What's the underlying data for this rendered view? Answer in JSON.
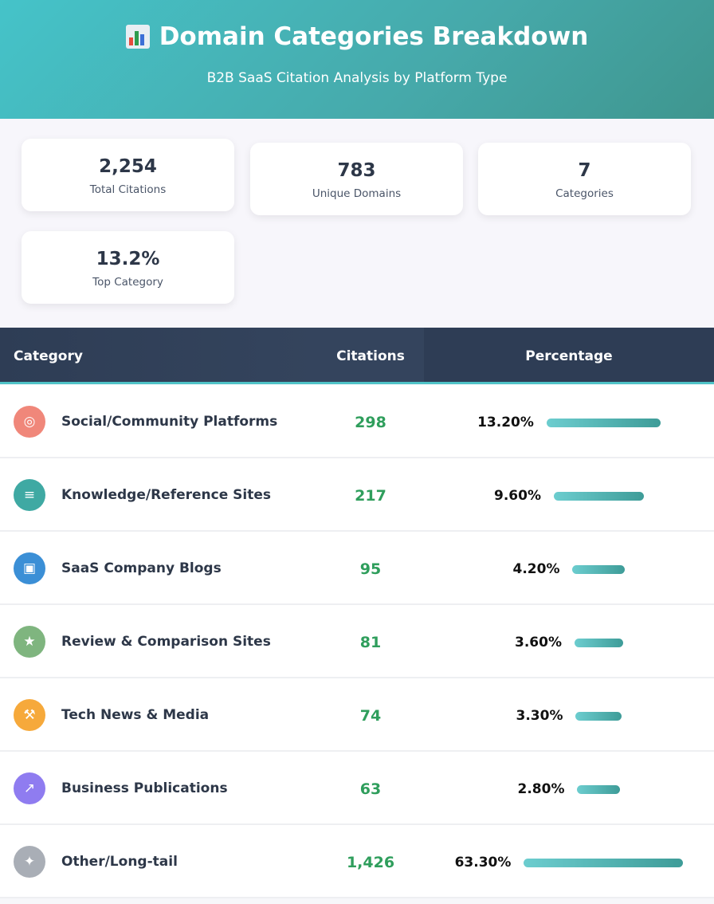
{
  "header": {
    "title": "Domain Categories Breakdown",
    "subtitle": "B2B SaaS Citation Analysis by Platform Type",
    "icon": "bar-chart-icon"
  },
  "stats": [
    {
      "value": "2,254",
      "label": "Total Citations"
    },
    {
      "value": "783",
      "label": "Unique Domains"
    },
    {
      "value": "7",
      "label": "Categories"
    },
    {
      "value": "13.2%",
      "label": "Top Category"
    }
  ],
  "table": {
    "columns": [
      "Category",
      "Citations",
      "Percentage"
    ]
  },
  "colors": {
    "header_gradient_start": "#45c3c9",
    "header_gradient_end": "#3f968f",
    "table_header": "#2e3d55",
    "citation_green": "#2f9e5c",
    "bar_start": "#6ccdcf",
    "bar_end": "#3e9c98"
  },
  "chart_data": {
    "type": "table",
    "categories": [
      "Social/Community Platforms",
      "Knowledge/Reference Sites",
      "SaaS Company Blogs",
      "Review & Comparison Sites",
      "Tech News & Media",
      "Business Publications",
      "Other/Long-tail"
    ],
    "citations": [
      "298",
      "217",
      "95",
      "81",
      "74",
      "63",
      "1,426"
    ],
    "percent_labels": [
      "13.20%",
      "9.60%",
      "4.20%",
      "3.60%",
      "3.30%",
      "2.80%",
      "63.30%"
    ],
    "percent_values": [
      13.2,
      9.6,
      4.2,
      3.6,
      3.3,
      2.8,
      63.3
    ],
    "icons": [
      "globe-icon",
      "books-icon",
      "briefcase-icon",
      "star-icon",
      "wrench-icon",
      "trending-chart-icon",
      "sparkle-star-icon"
    ],
    "icon_colors": [
      "#f0877a",
      "#3fa9a3",
      "#3b8fd6",
      "#7fb57f",
      "#f6a93b",
      "#8f7cf0",
      "#a9aeb6"
    ]
  }
}
